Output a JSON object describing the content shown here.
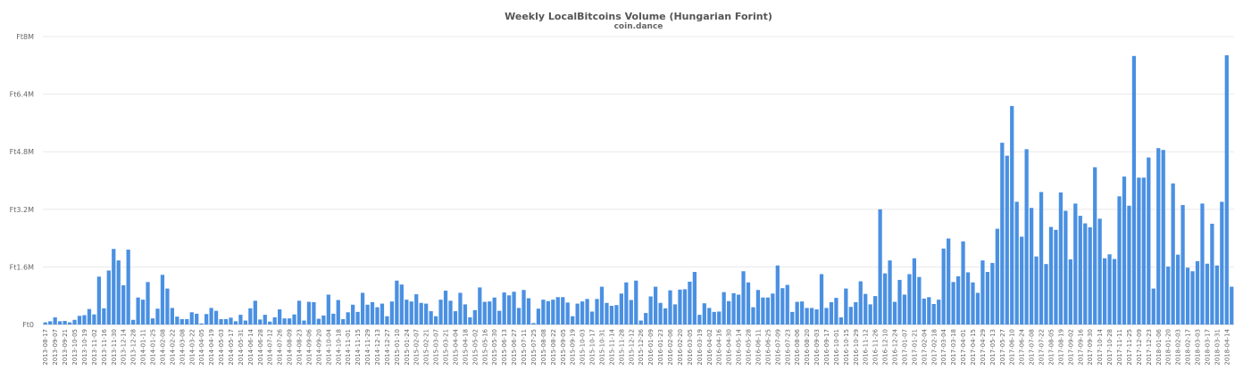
{
  "chart_data": {
    "type": "bar",
    "title": "Weekly LocalBitcoins Volume (Hungarian Forint)",
    "subtitle": "coin.dance",
    "xlabel": "",
    "ylabel": "",
    "ylim": [
      0,
      8000000
    ],
    "grid": true,
    "color": "#4a90e2",
    "y_ticks": [
      {
        "label": "Ft0",
        "value": 0
      },
      {
        "label": "Ft1.6M",
        "value": 1600000
      },
      {
        "label": "Ft3.2M",
        "value": 3200000
      },
      {
        "label": "Ft4.8M",
        "value": 4800000
      },
      {
        "label": "Ft6.4M",
        "value": 6400000
      },
      {
        "label": "Ft8M",
        "value": 8000000
      }
    ],
    "start_date": "2013-08-17",
    "x_tick_labels": [
      "2013-08-17",
      "2013-09-07",
      "2013-09-21",
      "2013-10-05",
      "2013-10-19",
      "2013-11-02",
      "2013-11-16",
      "2013-11-30",
      "2013-12-14",
      "2013-12-28",
      "2014-01-11",
      "2014-01-25",
      "2014-02-08",
      "2014-02-22",
      "2014-03-08",
      "2014-03-22",
      "2014-04-05",
      "2014-04-19",
      "2014-05-03",
      "2014-05-17",
      "2014-05-31",
      "2014-06-14",
      "2014-06-28",
      "2014-07-12",
      "2014-07-26",
      "2014-08-09",
      "2014-08-23",
      "2014-09-06",
      "2014-09-20",
      "2014-10-04",
      "2014-10-18",
      "2014-11-01",
      "2014-11-15",
      "2014-11-29",
      "2014-12-13",
      "2014-12-27",
      "2015-01-10",
      "2015-01-24",
      "2015-02-07",
      "2015-02-21",
      "2015-03-07",
      "2015-03-21",
      "2015-04-04",
      "2015-04-18",
      "2015-05-02",
      "2015-05-16",
      "2015-05-30",
      "2015-06-13",
      "2015-06-27",
      "2015-07-11",
      "2015-07-25",
      "2015-08-08",
      "2015-08-22",
      "2015-09-05",
      "2015-09-19",
      "2015-10-03",
      "2015-10-17",
      "2015-10-31",
      "2015-11-14",
      "2015-11-28",
      "2015-12-12",
      "2015-12-26",
      "2016-01-09",
      "2016-01-23",
      "2016-02-06",
      "2016-02-20",
      "2016-03-05",
      "2016-03-19",
      "2016-04-02",
      "2016-04-16",
      "2016-04-30",
      "2016-05-14",
      "2016-05-28",
      "2016-06-11",
      "2016-06-25",
      "2016-07-09",
      "2016-07-23",
      "2016-08-06",
      "2016-08-20",
      "2016-09-03",
      "2016-09-17",
      "2016-10-01",
      "2016-10-15",
      "2016-10-29",
      "2016-11-12",
      "2016-11-26",
      "2016-12-10",
      "2016-12-24",
      "2017-01-07",
      "2017-01-21",
      "2017-02-04",
      "2017-02-18",
      "2017-03-04",
      "2017-03-18",
      "2017-04-01",
      "2017-04-15",
      "2017-04-29",
      "2017-05-13",
      "2017-05-27",
      "2017-06-10",
      "2017-06-24",
      "2017-07-08",
      "2017-07-22",
      "2017-08-05",
      "2017-08-19",
      "2017-09-02",
      "2017-09-16",
      "2017-09-30",
      "2017-10-14",
      "2017-10-28",
      "2017-11-11",
      "2017-11-25",
      "2017-12-09",
      "2017-12-23",
      "2018-01-06",
      "2018-01-20",
      "2018-02-03",
      "2018-02-17",
      "2018-03-03",
      "2018-03-17",
      "2018-03-31",
      "2018-04-14"
    ],
    "values": [
      60000,
      90000,
      200000,
      90000,
      100000,
      60000,
      130000,
      240000,
      260000,
      430000,
      280000,
      1330000,
      450000,
      1500000,
      2100000,
      1780000,
      1090000,
      2080000,
      130000,
      750000,
      690000,
      1180000,
      170000,
      440000,
      1380000,
      1000000,
      460000,
      220000,
      150000,
      150000,
      340000,
      300000,
      30000,
      290000,
      460000,
      380000,
      150000,
      150000,
      190000,
      90000,
      270000,
      110000,
      450000,
      660000,
      140000,
      270000,
      80000,
      200000,
      420000,
      170000,
      170000,
      280000,
      660000,
      110000,
      630000,
      620000,
      160000,
      250000,
      830000,
      300000,
      680000,
      150000,
      340000,
      550000,
      350000,
      880000,
      550000,
      620000,
      480000,
      580000,
      230000,
      640000,
      1220000,
      1110000,
      690000,
      640000,
      840000,
      600000,
      580000,
      370000,
      230000,
      690000,
      940000,
      660000,
      370000,
      880000,
      560000,
      200000,
      400000,
      1030000,
      630000,
      640000,
      750000,
      380000,
      890000,
      810000,
      910000,
      460000,
      960000,
      730000,
      40000,
      440000,
      690000,
      650000,
      690000,
      760000,
      760000,
      610000,
      230000,
      580000,
      640000,
      710000,
      360000,
      710000,
      1050000,
      600000,
      520000,
      540000,
      860000,
      1170000,
      680000,
      1220000,
      110000,
      320000,
      780000,
      1050000,
      600000,
      450000,
      950000,
      560000,
      970000,
      980000,
      1190000,
      1460000,
      270000,
      590000,
      460000,
      350000,
      360000,
      900000,
      650000,
      870000,
      830000,
      1480000,
      1170000,
      480000,
      960000,
      750000,
      750000,
      860000,
      1640000,
      1010000,
      1100000,
      350000,
      630000,
      640000,
      460000,
      460000,
      420000,
      1400000,
      460000,
      620000,
      740000,
      200000,
      1000000,
      490000,
      620000,
      1200000,
      850000,
      560000,
      790000,
      3200000,
      1420000,
      1780000,
      630000,
      1240000,
      830000,
      1400000,
      1840000,
      1320000,
      720000,
      760000,
      570000,
      690000,
      2110000,
      2390000,
      1180000,
      1340000,
      2310000,
      1450000,
      1170000,
      880000,
      1780000,
      1460000,
      1710000,
      2660000,
      5050000,
      4690000,
      6070000,
      3410000,
      2440000,
      4870000,
      3240000,
      1890000,
      3680000,
      1680000,
      2710000,
      2630000,
      3670000,
      3160000,
      1810000,
      3360000,
      3020000,
      2810000,
      2700000,
      4370000,
      2940000,
      1840000,
      1950000,
      1820000,
      3560000,
      4110000,
      3300000,
      7460000,
      4080000,
      4080000,
      4640000,
      1000000,
      4900000,
      4850000,
      1610000,
      3920000,
      1940000,
      3320000,
      1580000,
      1480000,
      1760000,
      3360000,
      1690000,
      2800000,
      1640000,
      3410000,
      7480000,
      1050000
    ]
  }
}
